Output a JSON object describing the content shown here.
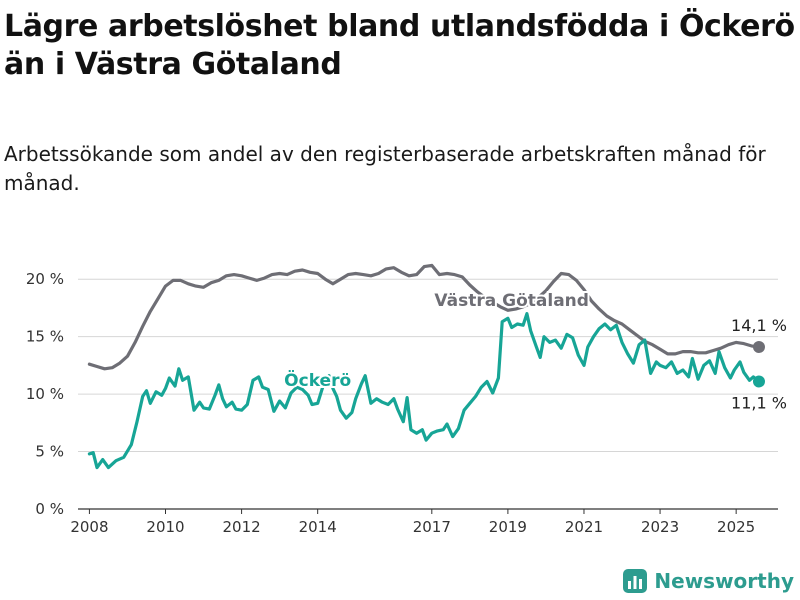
{
  "title": "Lägre arbetslöshet bland utlandsfödda i Öckerö än i Västra Götaland",
  "subtitle": "Arbetssökande som andel av den registerbaserade arbetskraften månad för månad.",
  "brand": "Newsworthy",
  "colors": {
    "accent": "#17a596",
    "gray": "#6e6e75",
    "brand": "#2d9c8f"
  },
  "chart_data": {
    "type": "line",
    "title": "Lägre arbetslöshet bland utlandsfödda i Öckerö än i Västra Götaland",
    "xlim": [
      2007.7,
      2026.1
    ],
    "ylim": [
      0,
      21.5
    ],
    "y_ticks": [
      0,
      5,
      10,
      15,
      20
    ],
    "y_tick_labels": [
      "0 %",
      "5 %",
      "10 %",
      "15 %",
      "20 %"
    ],
    "x_ticks": [
      2008,
      2010,
      2012,
      2014,
      2017,
      2019,
      2021,
      2023,
      2025
    ],
    "x_tick_labels": [
      "2008",
      "2010",
      "2012",
      "2014",
      "2017",
      "2019",
      "2021",
      "2023",
      "2025"
    ],
    "grid": true,
    "legend": "inline labels",
    "series": [
      {
        "name": "Västra Götaland",
        "color": "#6e6e75",
        "end_label": "14,1 %",
        "points": [
          [
            2008.0,
            12.6
          ],
          [
            2008.2,
            12.4
          ],
          [
            2008.4,
            12.2
          ],
          [
            2008.6,
            12.3
          ],
          [
            2008.8,
            12.7
          ],
          [
            2009.0,
            13.3
          ],
          [
            2009.2,
            14.5
          ],
          [
            2009.4,
            15.9
          ],
          [
            2009.6,
            17.2
          ],
          [
            2009.8,
            18.3
          ],
          [
            2010.0,
            19.4
          ],
          [
            2010.2,
            19.9
          ],
          [
            2010.4,
            19.9
          ],
          [
            2010.6,
            19.6
          ],
          [
            2010.8,
            19.4
          ],
          [
            2011.0,
            19.3
          ],
          [
            2011.2,
            19.7
          ],
          [
            2011.4,
            19.9
          ],
          [
            2011.6,
            20.3
          ],
          [
            2011.8,
            20.4
          ],
          [
            2012.0,
            20.3
          ],
          [
            2012.2,
            20.1
          ],
          [
            2012.4,
            19.9
          ],
          [
            2012.6,
            20.1
          ],
          [
            2012.8,
            20.4
          ],
          [
            2013.0,
            20.5
          ],
          [
            2013.2,
            20.4
          ],
          [
            2013.4,
            20.7
          ],
          [
            2013.6,
            20.8
          ],
          [
            2013.8,
            20.6
          ],
          [
            2014.0,
            20.5
          ],
          [
            2014.2,
            20.0
          ],
          [
            2014.4,
            19.6
          ],
          [
            2014.6,
            20.0
          ],
          [
            2014.8,
            20.4
          ],
          [
            2015.0,
            20.5
          ],
          [
            2015.2,
            20.4
          ],
          [
            2015.4,
            20.3
          ],
          [
            2015.6,
            20.5
          ],
          [
            2015.8,
            20.9
          ],
          [
            2016.0,
            21.0
          ],
          [
            2016.2,
            20.6
          ],
          [
            2016.4,
            20.3
          ],
          [
            2016.6,
            20.4
          ],
          [
            2016.8,
            21.1
          ],
          [
            2017.0,
            21.2
          ],
          [
            2017.2,
            20.4
          ],
          [
            2017.4,
            20.5
          ],
          [
            2017.6,
            20.4
          ],
          [
            2017.8,
            20.2
          ],
          [
            2018.0,
            19.5
          ],
          [
            2018.2,
            18.9
          ],
          [
            2018.4,
            18.4
          ],
          [
            2018.6,
            18.0
          ],
          [
            2018.8,
            17.6
          ],
          [
            2019.0,
            17.3
          ],
          [
            2019.2,
            17.4
          ],
          [
            2019.4,
            17.6
          ],
          [
            2019.6,
            17.9
          ],
          [
            2019.8,
            18.4
          ],
          [
            2020.0,
            19.0
          ],
          [
            2020.2,
            19.8
          ],
          [
            2020.4,
            20.5
          ],
          [
            2020.6,
            20.4
          ],
          [
            2020.8,
            19.9
          ],
          [
            2021.0,
            19.1
          ],
          [
            2021.2,
            18.1
          ],
          [
            2021.4,
            17.4
          ],
          [
            2021.6,
            16.8
          ],
          [
            2021.8,
            16.4
          ],
          [
            2022.0,
            16.1
          ],
          [
            2022.2,
            15.6
          ],
          [
            2022.4,
            15.1
          ],
          [
            2022.6,
            14.6
          ],
          [
            2022.8,
            14.3
          ],
          [
            2023.0,
            13.9
          ],
          [
            2023.2,
            13.5
          ],
          [
            2023.4,
            13.5
          ],
          [
            2023.6,
            13.7
          ],
          [
            2023.8,
            13.7
          ],
          [
            2024.0,
            13.6
          ],
          [
            2024.2,
            13.6
          ],
          [
            2024.4,
            13.8
          ],
          [
            2024.6,
            14.0
          ],
          [
            2024.8,
            14.3
          ],
          [
            2025.0,
            14.5
          ],
          [
            2025.2,
            14.4
          ],
          [
            2025.4,
            14.2
          ],
          [
            2025.6,
            14.1
          ]
        ]
      },
      {
        "name": "Öckerö",
        "color": "#17a596",
        "end_label": "11,1 %",
        "points": [
          [
            2008.0,
            4.8
          ],
          [
            2008.1,
            4.9
          ],
          [
            2008.2,
            3.6
          ],
          [
            2008.35,
            4.3
          ],
          [
            2008.5,
            3.6
          ],
          [
            2008.7,
            4.2
          ],
          [
            2008.9,
            4.5
          ],
          [
            2009.1,
            5.6
          ],
          [
            2009.25,
            7.6
          ],
          [
            2009.4,
            9.8
          ],
          [
            2009.5,
            10.3
          ],
          [
            2009.6,
            9.2
          ],
          [
            2009.75,
            10.2
          ],
          [
            2009.9,
            9.9
          ],
          [
            2010.0,
            10.5
          ],
          [
            2010.1,
            11.4
          ],
          [
            2010.25,
            10.7
          ],
          [
            2010.35,
            12.2
          ],
          [
            2010.45,
            11.2
          ],
          [
            2010.6,
            11.5
          ],
          [
            2010.75,
            8.6
          ],
          [
            2010.9,
            9.3
          ],
          [
            2011.0,
            8.8
          ],
          [
            2011.15,
            8.7
          ],
          [
            2011.3,
            9.9
          ],
          [
            2011.4,
            10.8
          ],
          [
            2011.5,
            9.6
          ],
          [
            2011.6,
            8.9
          ],
          [
            2011.75,
            9.3
          ],
          [
            2011.85,
            8.7
          ],
          [
            2012.0,
            8.6
          ],
          [
            2012.15,
            9.1
          ],
          [
            2012.3,
            11.2
          ],
          [
            2012.45,
            11.5
          ],
          [
            2012.55,
            10.6
          ],
          [
            2012.7,
            10.4
          ],
          [
            2012.85,
            8.5
          ],
          [
            2013.0,
            9.4
          ],
          [
            2013.15,
            8.8
          ],
          [
            2013.3,
            10.1
          ],
          [
            2013.45,
            10.6
          ],
          [
            2013.6,
            10.4
          ],
          [
            2013.75,
            9.9
          ],
          [
            2013.85,
            9.1
          ],
          [
            2014.0,
            9.2
          ],
          [
            2014.15,
            10.8
          ],
          [
            2014.3,
            11.6
          ],
          [
            2014.4,
            10.5
          ],
          [
            2014.5,
            9.8
          ],
          [
            2014.6,
            8.6
          ],
          [
            2014.75,
            7.9
          ],
          [
            2014.9,
            8.4
          ],
          [
            2015.0,
            9.6
          ],
          [
            2015.15,
            10.9
          ],
          [
            2015.25,
            11.6
          ],
          [
            2015.4,
            9.2
          ],
          [
            2015.55,
            9.6
          ],
          [
            2015.7,
            9.3
          ],
          [
            2015.85,
            9.1
          ],
          [
            2016.0,
            9.6
          ],
          [
            2016.1,
            8.7
          ],
          [
            2016.25,
            7.6
          ],
          [
            2016.35,
            9.7
          ],
          [
            2016.45,
            6.9
          ],
          [
            2016.6,
            6.6
          ],
          [
            2016.75,
            6.9
          ],
          [
            2016.85,
            6.0
          ],
          [
            2017.0,
            6.6
          ],
          [
            2017.15,
            6.8
          ],
          [
            2017.3,
            6.9
          ],
          [
            2017.4,
            7.4
          ],
          [
            2017.55,
            6.3
          ],
          [
            2017.7,
            7.0
          ],
          [
            2017.85,
            8.6
          ],
          [
            2018.0,
            9.2
          ],
          [
            2018.15,
            9.8
          ],
          [
            2018.3,
            10.6
          ],
          [
            2018.45,
            11.1
          ],
          [
            2018.6,
            10.1
          ],
          [
            2018.75,
            11.4
          ],
          [
            2018.85,
            16.3
          ],
          [
            2019.0,
            16.6
          ],
          [
            2019.1,
            15.8
          ],
          [
            2019.25,
            16.1
          ],
          [
            2019.4,
            16.0
          ],
          [
            2019.5,
            17.0
          ],
          [
            2019.6,
            15.5
          ],
          [
            2019.75,
            14.1
          ],
          [
            2019.85,
            13.2
          ],
          [
            2019.95,
            15.0
          ],
          [
            2020.1,
            14.5
          ],
          [
            2020.25,
            14.7
          ],
          [
            2020.4,
            14.0
          ],
          [
            2020.55,
            15.2
          ],
          [
            2020.7,
            14.9
          ],
          [
            2020.85,
            13.4
          ],
          [
            2021.0,
            12.5
          ],
          [
            2021.1,
            14.1
          ],
          [
            2021.25,
            15.0
          ],
          [
            2021.4,
            15.7
          ],
          [
            2021.55,
            16.1
          ],
          [
            2021.7,
            15.6
          ],
          [
            2021.85,
            16.0
          ],
          [
            2022.0,
            14.5
          ],
          [
            2022.15,
            13.5
          ],
          [
            2022.3,
            12.7
          ],
          [
            2022.45,
            14.3
          ],
          [
            2022.6,
            14.7
          ],
          [
            2022.75,
            11.8
          ],
          [
            2022.9,
            12.8
          ],
          [
            2023.0,
            12.5
          ],
          [
            2023.15,
            12.3
          ],
          [
            2023.3,
            12.8
          ],
          [
            2023.45,
            11.8
          ],
          [
            2023.6,
            12.1
          ],
          [
            2023.75,
            11.5
          ],
          [
            2023.85,
            13.1
          ],
          [
            2024.0,
            11.3
          ],
          [
            2024.15,
            12.5
          ],
          [
            2024.3,
            12.9
          ],
          [
            2024.45,
            11.8
          ],
          [
            2024.55,
            13.7
          ],
          [
            2024.7,
            12.3
          ],
          [
            2024.85,
            11.4
          ],
          [
            2024.95,
            12.1
          ],
          [
            2025.1,
            12.8
          ],
          [
            2025.2,
            11.9
          ],
          [
            2025.35,
            11.2
          ],
          [
            2025.45,
            11.5
          ],
          [
            2025.6,
            11.1
          ]
        ]
      }
    ]
  }
}
